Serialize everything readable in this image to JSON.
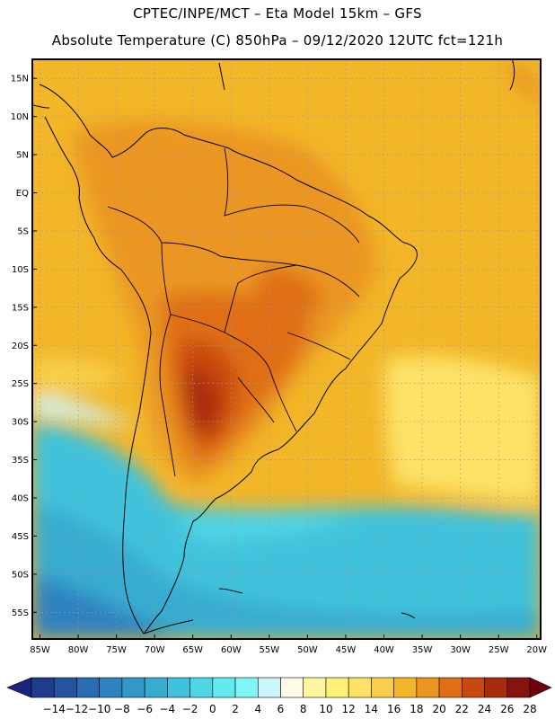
{
  "header": {
    "line1": "CPTEC/INPE/MCT –  Eta Model 15km – GFS",
    "line2": "Absolute Temperature (C) 850hPa – 09/12/2020 12UTC fct=121h"
  },
  "map": {
    "lat_labels": [
      "15N",
      "10N",
      "5N",
      "EQ",
      "5S",
      "10S",
      "15S",
      "20S",
      "25S",
      "30S",
      "35S",
      "40S",
      "45S",
      "50S",
      "55S"
    ],
    "lon_labels": [
      "85W",
      "80W",
      "75W",
      "70W",
      "65W",
      "60W",
      "55W",
      "50W",
      "45W",
      "40W",
      "35W",
      "30W",
      "25W",
      "20W"
    ],
    "lat_values": [
      15,
      10,
      5,
      0,
      -5,
      -10,
      -15,
      -20,
      -25,
      -30,
      -35,
      -40,
      -45,
      -50,
      -55
    ],
    "lon_values": [
      -85,
      -80,
      -75,
      -70,
      -65,
      -60,
      -55,
      -50,
      -45,
      -40,
      -35,
      -30,
      -25,
      -20
    ],
    "lat_range": [
      -58.5,
      17.5
    ],
    "lon_range": [
      -86,
      -19.5
    ],
    "gridlines": true
  },
  "colorbar": {
    "labels": [
      "-14",
      "-12",
      "-10",
      "-8",
      "-6",
      "-4",
      "-2",
      "0",
      "2",
      "4",
      "6",
      "8",
      "10",
      "12",
      "14",
      "16",
      "18",
      "20",
      "22",
      "24",
      "26",
      "28"
    ],
    "under_color": "#1a237e",
    "over_color": "#6e0010",
    "colors": [
      "#1f3c8c",
      "#2454a0",
      "#2a6cb4",
      "#2f82c0",
      "#3398c8",
      "#38acd0",
      "#3fc2dc",
      "#4fd6e6",
      "#62eaf0",
      "#7ff6f6",
      "#cdf6fa",
      "#fffbe4",
      "#fff7a0",
      "#fff078",
      "#fde266",
      "#f8ce4c",
      "#f2b628",
      "#eb9620",
      "#df6e14",
      "#c8480e",
      "#a82c0c",
      "#86140c"
    ]
  }
}
